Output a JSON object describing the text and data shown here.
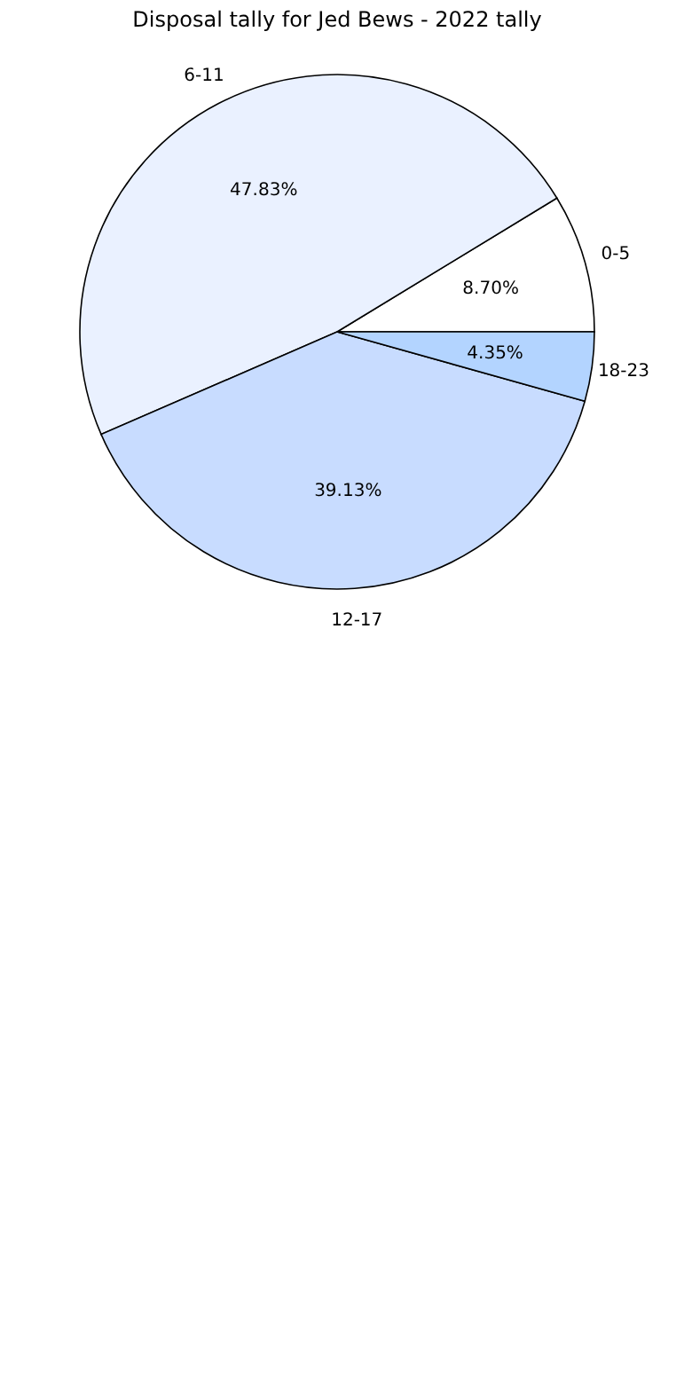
{
  "chart_data": {
    "type": "pie",
    "title": "Disposal tally for Jed Bews - 2022 tally",
    "categories": [
      "0-5",
      "6-11",
      "12-17",
      "18-23"
    ],
    "values": [
      8.7,
      47.83,
      39.13,
      4.35
    ],
    "value_labels": [
      "8.70%",
      "47.83%",
      "39.13%",
      "4.35%"
    ],
    "colors": [
      "#ffffff",
      "#eaf1ff",
      "#c8dcff",
      "#b3d4ff"
    ],
    "legend": false
  }
}
